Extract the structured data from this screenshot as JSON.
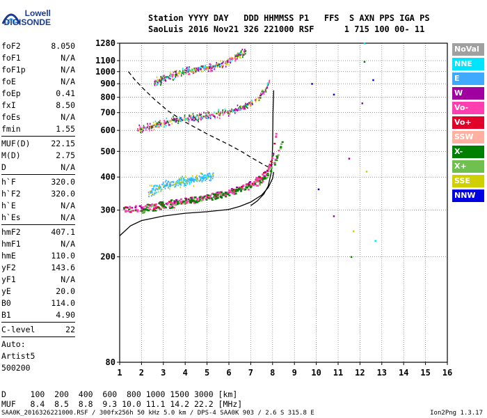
{
  "logo": {
    "line1": "Lowell",
    "line2": "DIGISONDE"
  },
  "header": {
    "line1": "Station YYYY DAY   DDD HHMMSS P1   FFS  S AXN PPS IGA PS",
    "line2": "SaoLuis 2016 Nov21 326 221000 RSF      1 715 100 00- 11"
  },
  "params": {
    "group1": [
      {
        "name": "foF2",
        "value": "8.050"
      },
      {
        "name": "foF1",
        "value": "N/A"
      },
      {
        "name": "foF1p",
        "value": "N/A"
      },
      {
        "name": "foE",
        "value": "N/A"
      },
      {
        "name": "foEp",
        "value": "0.41"
      },
      {
        "name": "fxI",
        "value": "8.50"
      },
      {
        "name": "foEs",
        "value": "N/A"
      },
      {
        "name": "fmin",
        "value": "1.55"
      }
    ],
    "group2": [
      {
        "name": "MUF(D)",
        "value": "22.15"
      },
      {
        "name": "M(D)",
        "value": "2.75"
      },
      {
        "name": "D",
        "value": "N/A"
      }
    ],
    "group3": [
      {
        "name": "h`F",
        "value": "320.0"
      },
      {
        "name": "h`F2",
        "value": "320.0"
      },
      {
        "name": "h`E",
        "value": "N/A"
      },
      {
        "name": "h`Es",
        "value": "N/A"
      }
    ],
    "group4": [
      {
        "name": "hmF2",
        "value": "407.1"
      },
      {
        "name": "hmF1",
        "value": "N/A"
      },
      {
        "name": "hmE",
        "value": "110.0"
      },
      {
        "name": "yF2",
        "value": "143.6"
      },
      {
        "name": "yF1",
        "value": "N/A"
      },
      {
        "name": "yE",
        "value": "20.0"
      },
      {
        "name": "B0",
        "value": "114.0"
      },
      {
        "name": "B1",
        "value": "4.90"
      }
    ],
    "clevel": {
      "name": "C-level",
      "value": "22"
    },
    "auto": {
      "line1": "Auto:",
      "line2": "Artist5",
      "line3": "500200"
    }
  },
  "legend": [
    {
      "label": "NoVal",
      "color": "#a0a0a0"
    },
    {
      "label": "NNE",
      "color": "#00e5ff"
    },
    {
      "label": "E",
      "color": "#3fa9ff"
    },
    {
      "label": "W",
      "color": "#a000a0"
    },
    {
      "label": "Vo-",
      "color": "#ff3faf"
    },
    {
      "label": "Vo+",
      "color": "#e0002a"
    },
    {
      "label": "SSW",
      "color": "#ffb0a0"
    },
    {
      "label": "X-",
      "color": "#008000"
    },
    {
      "label": "X+",
      "color": "#70c050"
    },
    {
      "label": "SSE",
      "color": "#d0d000"
    },
    {
      "label": "NNW",
      "color": "#0000e0"
    }
  ],
  "footer": {
    "d_line": "D     100  200  400  600  800 1000 1500 3000 [km]",
    "muf_line": "MUF   8.4  8.5  8.8  9.3 10.0 11.1 14.2 22.2 [MHz]",
    "info": "SAA0K_2016326221000.RSF / 300fx256h 50 kHz 5.0 km / DPS-4 SAA0K 903 / 2.6 S 315.8 E",
    "version": "Ion2Png 1.3.17"
  },
  "chart_data": {
    "type": "scatter",
    "title": "",
    "xlabel": "",
    "ylabel": "",
    "xlim": [
      1,
      16
    ],
    "ylim": [
      80,
      1280
    ],
    "y_scale": "log",
    "x_ticks": [
      1,
      2,
      3,
      4,
      5,
      6,
      7,
      8,
      9,
      10,
      11,
      12,
      13,
      14,
      15,
      16
    ],
    "y_ticks": [
      80,
      200,
      300,
      400,
      500,
      600,
      700,
      800,
      900,
      1000,
      1100,
      1280
    ],
    "grid": true,
    "legend_position": "right",
    "series": [
      {
        "kind": "line",
        "style": "solid",
        "points": [
          [
            1.0,
            240
          ],
          [
            1.5,
            262
          ],
          [
            2,
            274
          ],
          [
            3,
            285
          ],
          [
            4,
            292
          ],
          [
            5,
            296
          ],
          [
            6,
            302
          ],
          [
            6.5,
            310
          ],
          [
            7,
            322
          ],
          [
            7.5,
            342
          ],
          [
            7.8,
            365
          ],
          [
            8.0,
            395
          ],
          [
            8.05,
            418
          ]
        ]
      },
      {
        "kind": "line",
        "style": "solid",
        "points": [
          [
            7.0,
            312
          ],
          [
            7.3,
            325
          ],
          [
            7.6,
            345
          ],
          [
            7.8,
            370
          ],
          [
            7.95,
            420
          ],
          [
            8.0,
            520
          ],
          [
            8.02,
            700
          ],
          [
            8.05,
            850
          ]
        ]
      },
      {
        "kind": "line",
        "style": "dashed",
        "points": [
          [
            1.4,
            1000
          ],
          [
            1.7,
            930
          ],
          [
            2.1,
            860
          ],
          [
            2.6,
            785
          ],
          [
            3.2,
            712
          ],
          [
            4.0,
            645
          ],
          [
            5.0,
            582
          ],
          [
            6.0,
            530
          ],
          [
            6.6,
            498
          ],
          [
            7.1,
            470
          ],
          [
            7.5,
            450
          ],
          [
            7.9,
            432
          ]
        ]
      },
      {
        "kind": "trace",
        "label": "O-trace F",
        "points": [
          [
            1.2,
            300
          ],
          [
            2.0,
            305
          ],
          [
            3,
            316
          ],
          [
            4,
            326
          ],
          [
            5,
            336
          ],
          [
            6,
            350
          ],
          [
            6.5,
            362
          ],
          [
            7,
            378
          ],
          [
            7.5,
            400
          ],
          [
            7.8,
            425
          ],
          [
            8.0,
            470
          ],
          [
            8.1,
            540
          ],
          [
            8.2,
            600
          ]
        ]
      },
      {
        "kind": "trace",
        "label": "X-trace F",
        "points": [
          [
            2.0,
            300
          ],
          [
            3,
            310
          ],
          [
            4,
            320
          ],
          [
            5,
            332
          ],
          [
            6,
            348
          ],
          [
            6.8,
            362
          ],
          [
            7.4,
            380
          ],
          [
            7.8,
            410
          ],
          [
            8.1,
            450
          ],
          [
            8.3,
            500
          ],
          [
            8.5,
            560
          ]
        ]
      },
      {
        "kind": "trace",
        "label": "F 2-hop",
        "points": [
          [
            1.8,
            600
          ],
          [
            2.5,
            625
          ],
          [
            3,
            640
          ],
          [
            3.5,
            655
          ],
          [
            4,
            665
          ],
          [
            5,
            680
          ],
          [
            6,
            705
          ],
          [
            6.5,
            725
          ],
          [
            7,
            760
          ],
          [
            7.4,
            800
          ],
          [
            7.7,
            860
          ],
          [
            7.9,
            930
          ]
        ]
      },
      {
        "kind": "trace",
        "label": "F 3-hop",
        "points": [
          [
            2.6,
            900
          ],
          [
            3,
            940
          ],
          [
            3.5,
            970
          ],
          [
            4,
            1000
          ],
          [
            5,
            1030
          ],
          [
            5.5,
            1060
          ],
          [
            6,
            1100
          ],
          [
            6.4,
            1150
          ],
          [
            6.8,
            1200
          ]
        ]
      },
      {
        "kind": "trace",
        "label": "E/oblique",
        "points": [
          [
            2.3,
            350
          ],
          [
            3,
            370
          ],
          [
            4,
            385
          ],
          [
            4.7,
            395
          ],
          [
            5.3,
            405
          ]
        ]
      }
    ]
  }
}
